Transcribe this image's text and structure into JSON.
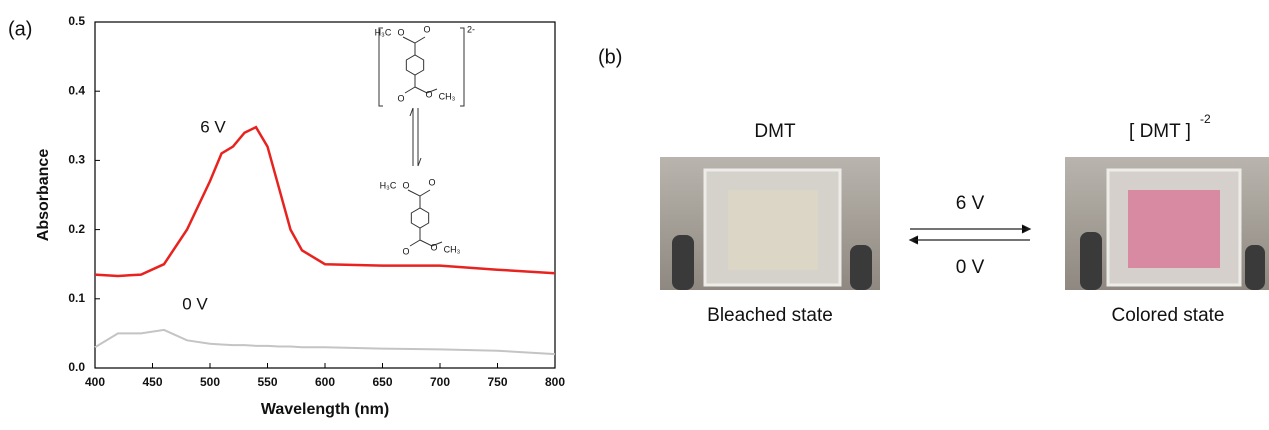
{
  "chart_data": {
    "type": "line",
    "panel_label": "(a)",
    "x_label": "Wavelength (nm)",
    "y_label": "Absorbance",
    "x": [
      400,
      420,
      440,
      460,
      480,
      500,
      510,
      520,
      530,
      540,
      550,
      560,
      570,
      580,
      600,
      650,
      700,
      750,
      800
    ],
    "series": [
      {
        "name": "6 V",
        "color": "#e8231f",
        "values": [
          0.135,
          0.133,
          0.135,
          0.15,
          0.2,
          0.27,
          0.31,
          0.32,
          0.34,
          0.348,
          0.32,
          0.26,
          0.2,
          0.17,
          0.15,
          0.148,
          0.148,
          0.142,
          0.137
        ]
      },
      {
        "name": "0 V",
        "color": "#c4c4c4",
        "values": [
          0.03,
          0.05,
          0.05,
          0.055,
          0.04,
          0.035,
          0.034,
          0.033,
          0.033,
          0.032,
          0.032,
          0.031,
          0.031,
          0.03,
          0.03,
          0.028,
          0.027,
          0.025,
          0.02
        ]
      }
    ],
    "xlim": [
      400,
      800
    ],
    "xticks": [
      400,
      450,
      500,
      550,
      600,
      650,
      700,
      750,
      800
    ],
    "ylim": [
      0,
      0.5
    ],
    "yticks": [
      {
        "value": 0,
        "label": "0.0"
      },
      0.1,
      0.2,
      0.3,
      0.4,
      0.5
    ],
    "structures": {
      "charge": "2-",
      "top_labels": [
        "H₃C",
        "O",
        "O",
        "O",
        "O",
        "CH₃"
      ],
      "bottom_labels": [
        "H₃C",
        "O",
        "O",
        "O",
        "O",
        "CH₃"
      ]
    }
  },
  "panel_b": {
    "panel_label": "(b)",
    "left_title": "DMT",
    "right_title": "[ DMT ]",
    "right_superscript": "-2",
    "forward": "6 V",
    "backward": "0 V",
    "left_caption": "Bleached state",
    "right_caption": "Colored state"
  }
}
